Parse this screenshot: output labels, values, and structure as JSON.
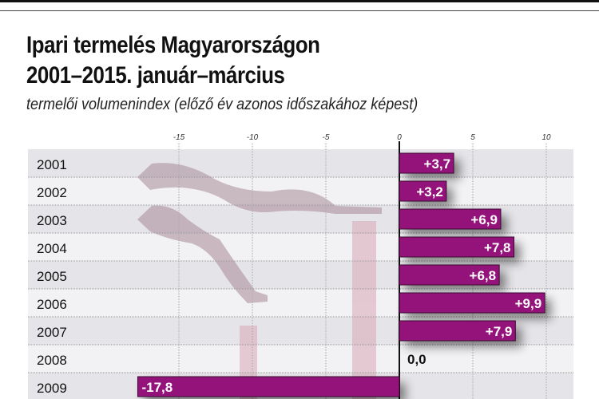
{
  "chart_data": {
    "type": "bar",
    "orientation": "horizontal",
    "title": "Ipari termelés Magyarországon",
    "title_line2": "2001–2015. január–március",
    "subtitle": "termelői volumenindex (előző év azonos időszakához képest)",
    "categories": [
      "2001",
      "2002",
      "2003",
      "2004",
      "2005",
      "2006",
      "2007",
      "2008",
      "2009"
    ],
    "values": [
      3.7,
      3.2,
      6.9,
      7.8,
      6.8,
      9.9,
      7.9,
      0.0,
      -17.8
    ],
    "data_labels": [
      "+3,7",
      "+3,2",
      "+6,9",
      "+7,8",
      "+6,8",
      "+9,9",
      "+7,9",
      "0,0",
      "-17,8"
    ],
    "xticks": [
      -15,
      -10,
      -5,
      0,
      5,
      10
    ],
    "xtick_labels": [
      "-15",
      "-10",
      "-5",
      "0",
      "5",
      "10"
    ],
    "xlim": [
      -25,
      11.8
    ],
    "grid": true,
    "colors": {
      "bar": "#93137b",
      "row_dark": "#e5e4e8",
      "row_light": "#f2f2f4",
      "decoration": "#c9a9b3"
    }
  }
}
